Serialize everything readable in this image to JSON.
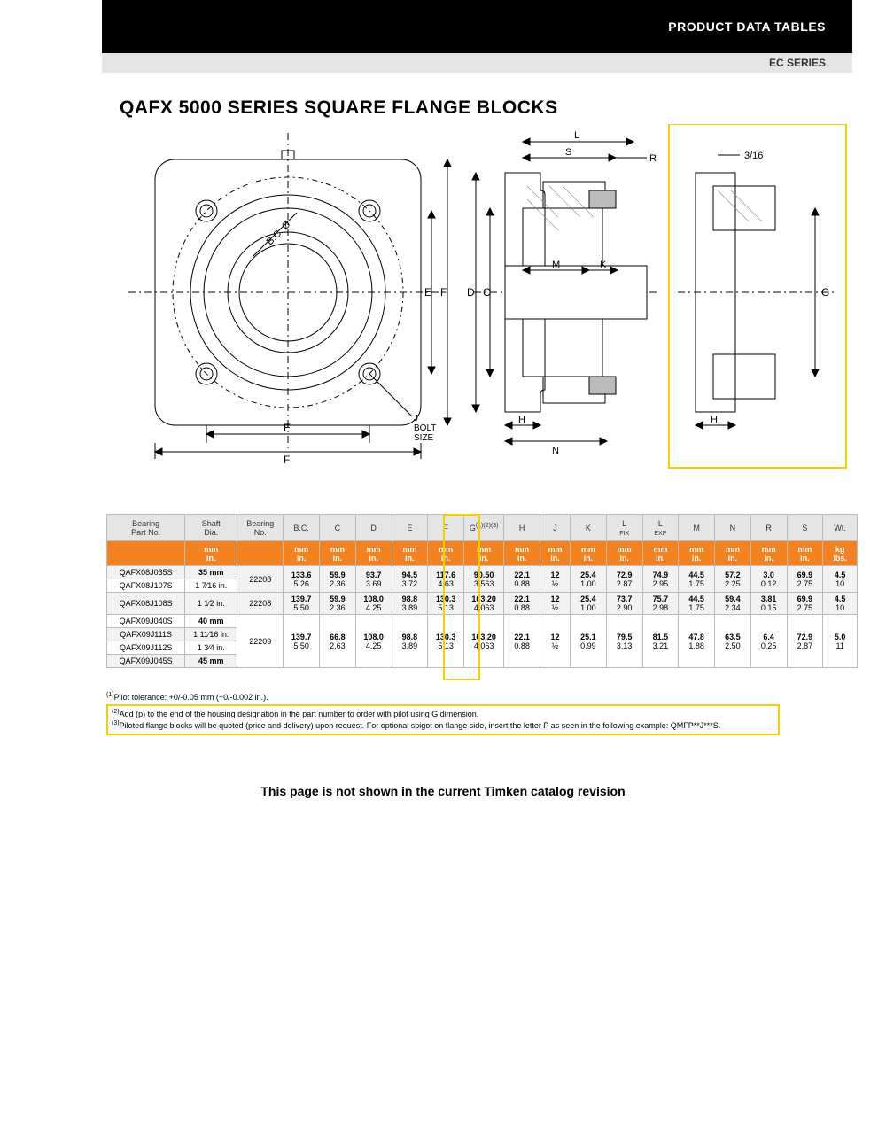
{
  "header": {
    "black_band": "PRODUCT DATA TABLES",
    "gray_band": "EC SERIES"
  },
  "title": "QAFX 5000 SERIES SQUARE FLANGE BLOCKS",
  "diagram": {
    "labels": {
      "E": "E",
      "F": "F",
      "D": "D",
      "C": "C",
      "L": "L",
      "S": "S",
      "R": "R",
      "M": "M",
      "K": "K",
      "H": "H",
      "N": "N",
      "G": "G",
      "BC": "B.C. Ø",
      "J": "J\nBOLT\nSIZE",
      "fraction": "3/16"
    },
    "stroke": "#000000",
    "yellow": "#f5d000",
    "hatch": "#888888"
  },
  "table": {
    "headers": [
      "Bearing\nPart No.",
      "Shaft\nDia.",
      "Bearing\nNo.",
      "B.C.",
      "C",
      "D",
      "E",
      "F",
      "G",
      "H",
      "J",
      "K",
      "L FIX",
      "L EXP",
      "M",
      "N",
      "R",
      "S",
      "Wt."
    ],
    "g_superscript": "(1)(2)(3)",
    "l_fix_sub": "FIX",
    "l_exp_sub": "EXP",
    "units_row": [
      "",
      "mm\nin.",
      "",
      "mm\nin.",
      "mm\nin.",
      "mm\nin.",
      "mm\nin.",
      "mm\nin.",
      "mm\nin.",
      "mm\nin.",
      "mm\nin.",
      "mm\nin.",
      "mm\nin.",
      "mm\nin.",
      "mm\nin.",
      "mm\nin.",
      "mm\nin.",
      "mm\nin.",
      "kg\nlbs."
    ],
    "rows": [
      {
        "part": "QAFX08J035S",
        "shaft": "35 mm",
        "brg": "22208",
        "bc": [
          "133.6",
          "5.26"
        ],
        "c": [
          "59.9",
          "2.36"
        ],
        "d": [
          "93.7",
          "3.69"
        ],
        "e": [
          "94.5",
          "3.72"
        ],
        "f": [
          "117.6",
          "4.63"
        ],
        "g": [
          "90.50",
          "3.563"
        ],
        "h": [
          "22.1",
          "0.88"
        ],
        "j": [
          "12",
          "½"
        ],
        "k": [
          "25.4",
          "1.00"
        ],
        "lfix": [
          "72.9",
          "2.87"
        ],
        "lexp": [
          "74.9",
          "2.95"
        ],
        "m": [
          "44.5",
          "1.75"
        ],
        "n": [
          "57.2",
          "2.25"
        ],
        "r": [
          "3.0",
          "0.12"
        ],
        "s": [
          "69.9",
          "2.75"
        ],
        "wt": [
          "4.5",
          "10"
        ]
      },
      {
        "part": "QAFX08J107S",
        "shaft": "1 7⁄16 in.",
        "brg": "",
        "share": true
      },
      {
        "part": "QAFX08J108S",
        "shaft": "1 1⁄2 in.",
        "brg": "22208",
        "bc": [
          "139.7",
          "5.50"
        ],
        "c": [
          "59.9",
          "2.36"
        ],
        "d": [
          "108.0",
          "4.25"
        ],
        "e": [
          "98.8",
          "3.89"
        ],
        "f": [
          "130.3",
          "5.13"
        ],
        "g": [
          "103.20",
          "4.063"
        ],
        "h": [
          "22.1",
          "0.88"
        ],
        "j": [
          "12",
          "½"
        ],
        "k": [
          "25.4",
          "1.00"
        ],
        "lfix": [
          "73.7",
          "2.90"
        ],
        "lexp": [
          "75.7",
          "2.98"
        ],
        "m": [
          "44.5",
          "1.75"
        ],
        "n": [
          "59.4",
          "2.34"
        ],
        "r": [
          "3.81",
          "0.15"
        ],
        "s": [
          "69.9",
          "2.75"
        ],
        "wt": [
          "4.5",
          "10"
        ]
      },
      {
        "part": "QAFX09J040S",
        "shaft": "40 mm",
        "brg": "22209",
        "bc": [
          "139.7",
          "5.50"
        ],
        "c": [
          "66.8",
          "2.63"
        ],
        "d": [
          "108.0",
          "4.25"
        ],
        "e": [
          "98.8",
          "3.89"
        ],
        "f": [
          "130.3",
          "5.13"
        ],
        "g": [
          "103.20",
          "4.063"
        ],
        "h": [
          "22.1",
          "0.88"
        ],
        "j": [
          "12",
          "½"
        ],
        "k": [
          "25.1",
          "0.99"
        ],
        "lfix": [
          "79.5",
          "3.13"
        ],
        "lexp": [
          "81.5",
          "3.21"
        ],
        "m": [
          "47.8",
          "1.88"
        ],
        "n": [
          "63.5",
          "2.50"
        ],
        "r": [
          "6.4",
          "0.25"
        ],
        "s": [
          "72.9",
          "2.87"
        ],
        "wt": [
          "5.0",
          "11"
        ],
        "group_start": true,
        "group_size": 4
      },
      {
        "part": "QAFX09J111S",
        "shaft": "1 11⁄16 in.",
        "share": true
      },
      {
        "part": "QAFX09J112S",
        "shaft": "1 3⁄4 in.",
        "share": true
      },
      {
        "part": "QAFX09J045S",
        "shaft": "45 mm",
        "share": true
      }
    ]
  },
  "footnotes": {
    "note1": "Pilot tolerance: +0/-0.05 mm (+0/-0.002 in.).",
    "note2": "Add (p) to the end of the housing designation in the part number to order with pilot using G dimension.",
    "note3": "Piloted flange blocks will be quoted (price and delivery) upon request. For optional spigot on flange side, insert the letter P as seen in the following example: QMFP**J***S."
  },
  "not_shown": "This page is not shown in the current Timken catalog revision",
  "colors": {
    "orange": "#f58220",
    "yellow": "#f5d000",
    "gray_bg": "#e5e5e5",
    "border": "#bbbbbb"
  }
}
